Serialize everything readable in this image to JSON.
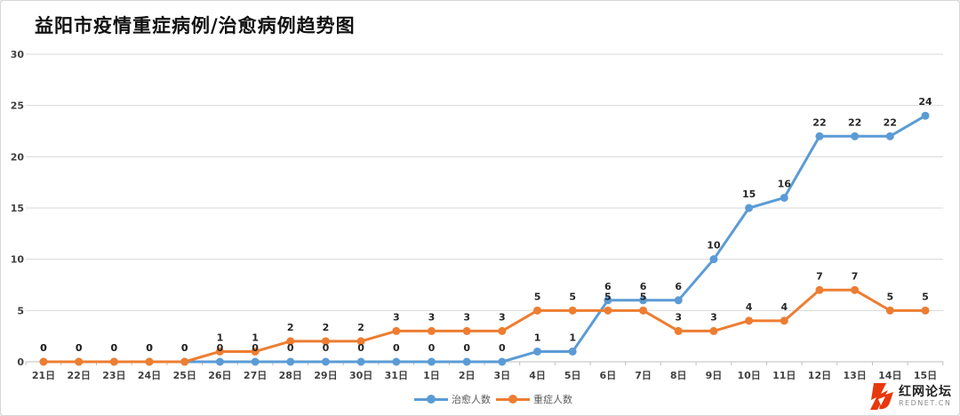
{
  "chart_data": {
    "type": "line",
    "title": "益阳市疫情重症病例/治愈病例趋势图",
    "categories": [
      "21日",
      "22日",
      "23日",
      "24日",
      "25日",
      "26日",
      "27日",
      "28日",
      "29日",
      "30日",
      "31日",
      "1日",
      "2日",
      "3日",
      "4日",
      "5日",
      "6日",
      "7日",
      "8日",
      "9日",
      "10日",
      "11日",
      "12日",
      "13日",
      "14日",
      "15日"
    ],
    "series": [
      {
        "name": "治愈人数",
        "color": "#5B9BD5",
        "values": [
          0,
          0,
          0,
          0,
          0,
          0,
          0,
          0,
          0,
          0,
          0,
          0,
          0,
          0,
          1,
          1,
          6,
          6,
          6,
          10,
          15,
          16,
          22,
          22,
          22,
          24
        ]
      },
      {
        "name": "重症人数",
        "color": "#ED7D31",
        "values": [
          0,
          0,
          0,
          0,
          0,
          1,
          1,
          2,
          2,
          2,
          3,
          3,
          3,
          3,
          5,
          5,
          5,
          5,
          3,
          3,
          4,
          4,
          7,
          7,
          5,
          5
        ]
      }
    ],
    "xlabel": "",
    "ylabel": "",
    "ylim": [
      0,
      30
    ],
    "yticks": [
      0,
      5,
      10,
      15,
      20,
      25,
      30
    ],
    "grid": "horizontal",
    "legend_position": "bottom",
    "data_labels": true
  },
  "colors": {
    "cured_line": "#5B9BD5",
    "severe_line": "#ED7D31",
    "gridline": "#D9D9D9",
    "axis_line": "#BFBFBF",
    "tick_label": "#404040",
    "data_label": "#262626",
    "brand_red": "#E8380D"
  },
  "branding": {
    "name": "红网论坛",
    "domain": "REDNET.CN"
  }
}
